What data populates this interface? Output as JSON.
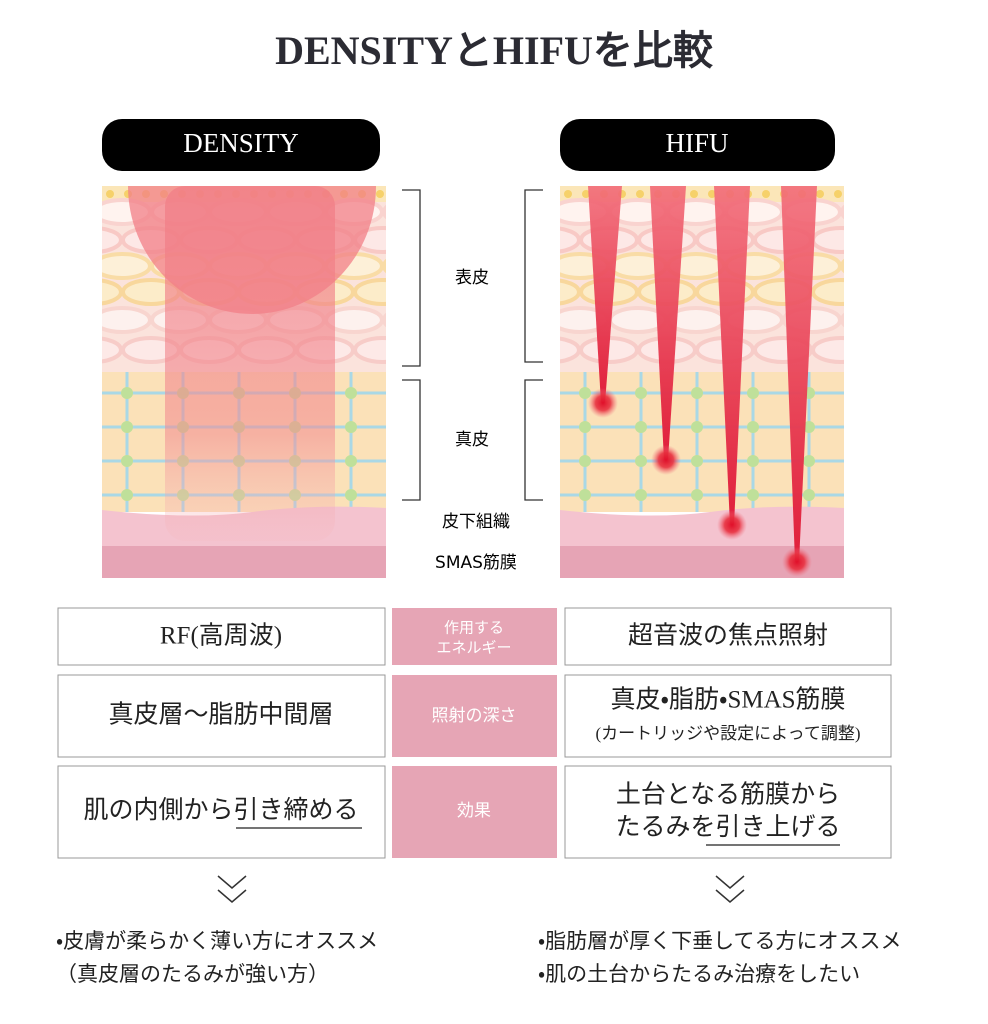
{
  "header": {
    "title": "DENSITYとHIFUを比較"
  },
  "panels": {
    "left": "DENSITY",
    "right": "HIFU"
  },
  "layers": {
    "epidermis": "表皮",
    "dermis": "真皮",
    "subcutaneous": "皮下組織",
    "smas": "SMAS筋膜"
  },
  "table": {
    "energy": {
      "left": "RF(高周波)",
      "label": [
        "作用する",
        "エネルギー"
      ],
      "right": "超音波の焦点照射"
    },
    "depth": {
      "left": "真皮層〜脂肪中間層",
      "label": "照射の深さ",
      "right": "真皮・脂肪・SMAS筋膜",
      "right_note": "(カートリッジや設定によって調整)"
    },
    "effect": {
      "left": {
        "text": "肌の内側から",
        "underlined": "引き締める"
      },
      "label": "効果",
      "right": {
        "line1": "土台となる筋膜から",
        "text": "たるみを",
        "underlined": "引き上げる"
      }
    }
  },
  "recommend": {
    "left": [
      "・皮膚が柔らかく薄い方にオススメ",
      "（真皮層のたるみが強い方）"
    ],
    "right": [
      "・脂肪層が厚く下垂してる方にオススメ",
      "・肌の土台からたるみ治療をしたい"
    ]
  }
}
